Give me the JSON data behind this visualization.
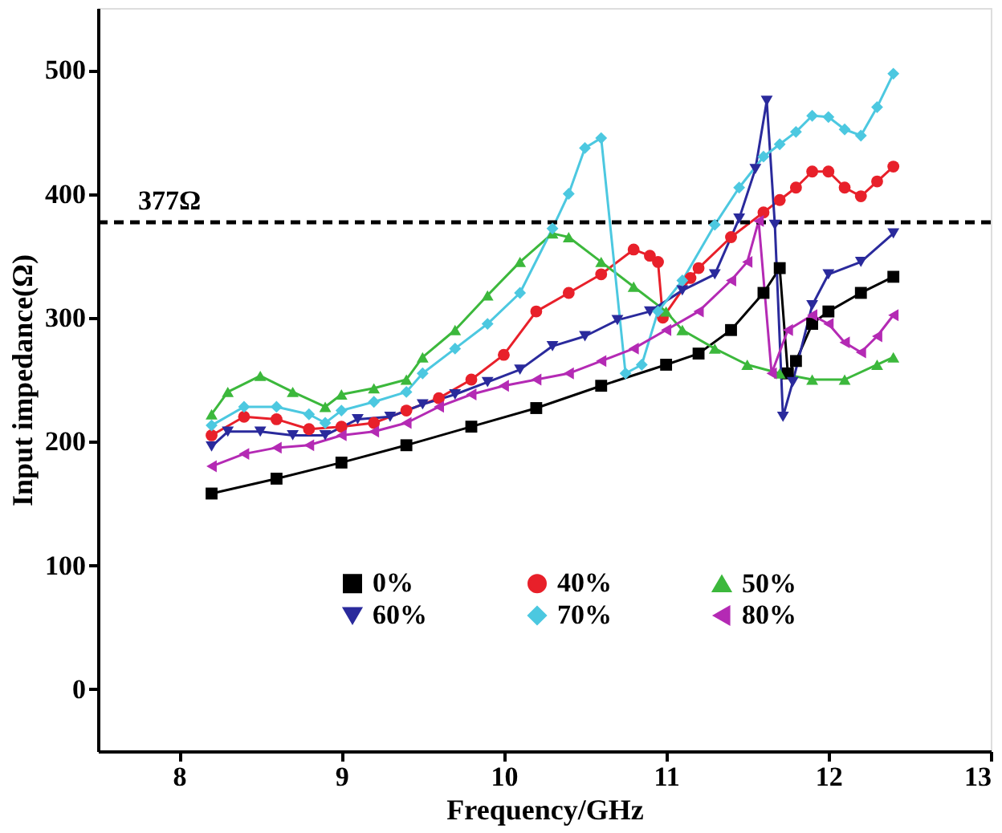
{
  "chart_data": {
    "type": "line",
    "xlabel": "Frequency/GHz",
    "ylabel": "Input impedance(Ω)",
    "xlim": [
      7.5,
      13
    ],
    "xticks": [
      8,
      9,
      10,
      11,
      12,
      13
    ],
    "ylim": [
      -50,
      550
    ],
    "yticks": [
      0,
      100,
      200,
      300,
      400,
      500
    ],
    "grid": false,
    "legend": "bottom",
    "ref_lines": [
      {
        "axis": "y",
        "value": 377,
        "label": "377Ω",
        "color": "#000000",
        "line_style": "dashed"
      }
    ],
    "series": [
      {
        "name": "0%",
        "color": "#000000",
        "marker": "square",
        "x": [
          8.2,
          8.6,
          9.0,
          9.4,
          9.8,
          10.2,
          10.6,
          11.0,
          11.2,
          11.4,
          11.6,
          11.7,
          11.75,
          11.8,
          11.9,
          12.0,
          12.2,
          12.4
        ],
        "values": [
          158,
          170,
          183,
          197,
          212,
          227,
          245,
          262,
          271,
          290,
          320,
          340,
          255,
          265,
          295,
          305,
          320,
          333
        ]
      },
      {
        "name": "40%",
        "color": "#e8202a",
        "marker": "circle",
        "x": [
          8.2,
          8.4,
          8.6,
          8.8,
          9.0,
          9.2,
          9.4,
          9.6,
          9.8,
          10.0,
          10.2,
          10.4,
          10.6,
          10.8,
          10.9,
          10.95,
          10.98,
          11.15,
          11.2,
          11.4,
          11.6,
          11.7,
          11.8,
          11.9,
          12.0,
          12.1,
          12.2,
          12.3,
          12.4
        ],
        "values": [
          205,
          220,
          218,
          210,
          212,
          215,
          225,
          235,
          250,
          270,
          305,
          320,
          335,
          355,
          350,
          345,
          300,
          332,
          340,
          365,
          385,
          395,
          405,
          418,
          418,
          405,
          398,
          410,
          422
        ]
      },
      {
        "name": "50%",
        "color": "#3cb83c",
        "marker": "triangle",
        "x": [
          8.2,
          8.3,
          8.5,
          8.7,
          8.9,
          9.0,
          9.2,
          9.4,
          9.5,
          9.7,
          9.9,
          10.1,
          10.3,
          10.4,
          10.6,
          10.8,
          11.0,
          11.1,
          11.3,
          11.5,
          11.7,
          11.9,
          12.1,
          12.3,
          12.4
        ],
        "values": [
          222,
          240,
          253,
          240,
          228,
          238,
          243,
          250,
          268,
          290,
          318,
          345,
          368,
          365,
          345,
          325,
          305,
          290,
          275,
          262,
          255,
          250,
          250,
          262,
          268
        ]
      },
      {
        "name": "60%",
        "color": "#2a2a9c",
        "marker": "triangle-down",
        "x": [
          8.2,
          8.3,
          8.5,
          8.7,
          8.9,
          9.1,
          9.3,
          9.5,
          9.7,
          9.9,
          10.1,
          10.3,
          10.5,
          10.7,
          10.9,
          11.1,
          11.3,
          11.45,
          11.55,
          11.62,
          11.67,
          11.72,
          11.78,
          11.9,
          12.0,
          12.2,
          12.4
        ],
        "values": [
          196,
          208,
          208,
          205,
          205,
          218,
          220,
          230,
          238,
          248,
          258,
          277,
          285,
          298,
          305,
          322,
          335,
          380,
          420,
          475,
          375,
          220,
          248,
          310,
          335,
          345,
          368
        ]
      },
      {
        "name": "70%",
        "color": "#4cc8e0",
        "marker": "diamond",
        "x": [
          8.2,
          8.4,
          8.6,
          8.8,
          8.9,
          9.0,
          9.2,
          9.4,
          9.5,
          9.7,
          9.9,
          10.1,
          10.3,
          10.4,
          10.5,
          10.6,
          10.75,
          10.85,
          10.95,
          11.1,
          11.3,
          11.45,
          11.6,
          11.7,
          11.8,
          11.9,
          12.0,
          12.1,
          12.2,
          12.3,
          12.4
        ],
        "values": [
          213,
          228,
          228,
          222,
          215,
          225,
          232,
          240,
          255,
          275,
          295,
          320,
          372,
          400,
          437,
          445,
          255,
          262,
          305,
          330,
          375,
          405,
          430,
          440,
          450,
          463,
          462,
          452,
          447,
          470,
          497
        ]
      },
      {
        "name": "80%",
        "color": "#b42ab4",
        "marker": "triangle-left",
        "x": [
          8.2,
          8.4,
          8.6,
          8.8,
          9.0,
          9.2,
          9.4,
          9.6,
          9.8,
          10.0,
          10.2,
          10.4,
          10.6,
          10.8,
          11.0,
          11.2,
          11.4,
          11.5,
          11.57,
          11.65,
          11.75,
          11.9,
          12.0,
          12.1,
          12.2,
          12.3,
          12.4
        ],
        "values": [
          180,
          190,
          195,
          197,
          205,
          208,
          215,
          228,
          238,
          245,
          250,
          255,
          265,
          275,
          290,
          305,
          330,
          345,
          378,
          255,
          290,
          302,
          295,
          280,
          272,
          285,
          302
        ]
      }
    ]
  }
}
